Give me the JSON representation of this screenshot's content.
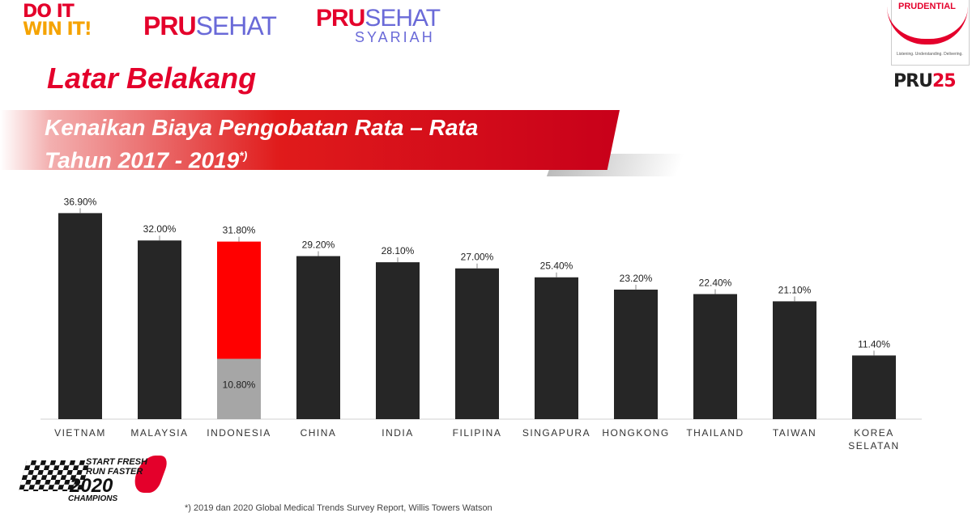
{
  "logos": {
    "doit": [
      "DO IT",
      "WIN IT!"
    ],
    "prusehat": {
      "pru": "PRU",
      "sehat": "SEHAT"
    },
    "prusehat_syariah": {
      "pru": "PRU",
      "sehat": "SEHAT",
      "sub": "SYARIAH"
    },
    "prudential": {
      "name": "PRUDENTIAL",
      "tagline": "Listening. Understanding. Delivering."
    },
    "pru25": {
      "pru": "PRU",
      "num": "25"
    },
    "run2020": {
      "line1": "START FRESH",
      "line2": "RUN FASTER",
      "line3": "2020",
      "line4": "CHAMPIONS"
    }
  },
  "page_title": "Latar Belakang",
  "banner": {
    "line1": "Kenaikan Biaya Pengobatan Rata – Rata",
    "line2": "Tahun 2017 - 2019",
    "mark": "*)"
  },
  "footnote": "*) 2019 dan 2020 Global Medical Trends Survey Report, Willis Towers Watson",
  "colors": {
    "bar": "#262626",
    "highlight": "#ff0000",
    "highlight_base": "#a6a6a6",
    "brand_red": "#e4002b"
  },
  "chart_data": {
    "type": "bar",
    "categories": [
      "VIETNAM",
      "MALAYSIA",
      "INDONESIA",
      "CHINA",
      "INDIA",
      "FILIPINA",
      "SINGAPURA",
      "HONGKONG",
      "THAILAND",
      "TAIWAN",
      "KOREA SELATAN"
    ],
    "values": [
      36.9,
      32.0,
      31.8,
      29.2,
      28.1,
      27.0,
      25.4,
      23.2,
      22.4,
      21.1,
      11.4
    ],
    "labels": [
      "36.90%",
      "32.00%",
      "31.80%",
      "29.20%",
      "28.10%",
      "27.00%",
      "25.40%",
      "23.20%",
      "22.40%",
      "21.10%",
      "11.40%"
    ],
    "highlight": {
      "category": "INDONESIA",
      "base_value": 10.8,
      "base_label": "10.80%"
    },
    "ylim": [
      0,
      40
    ],
    "grid": false,
    "legend": "none"
  }
}
